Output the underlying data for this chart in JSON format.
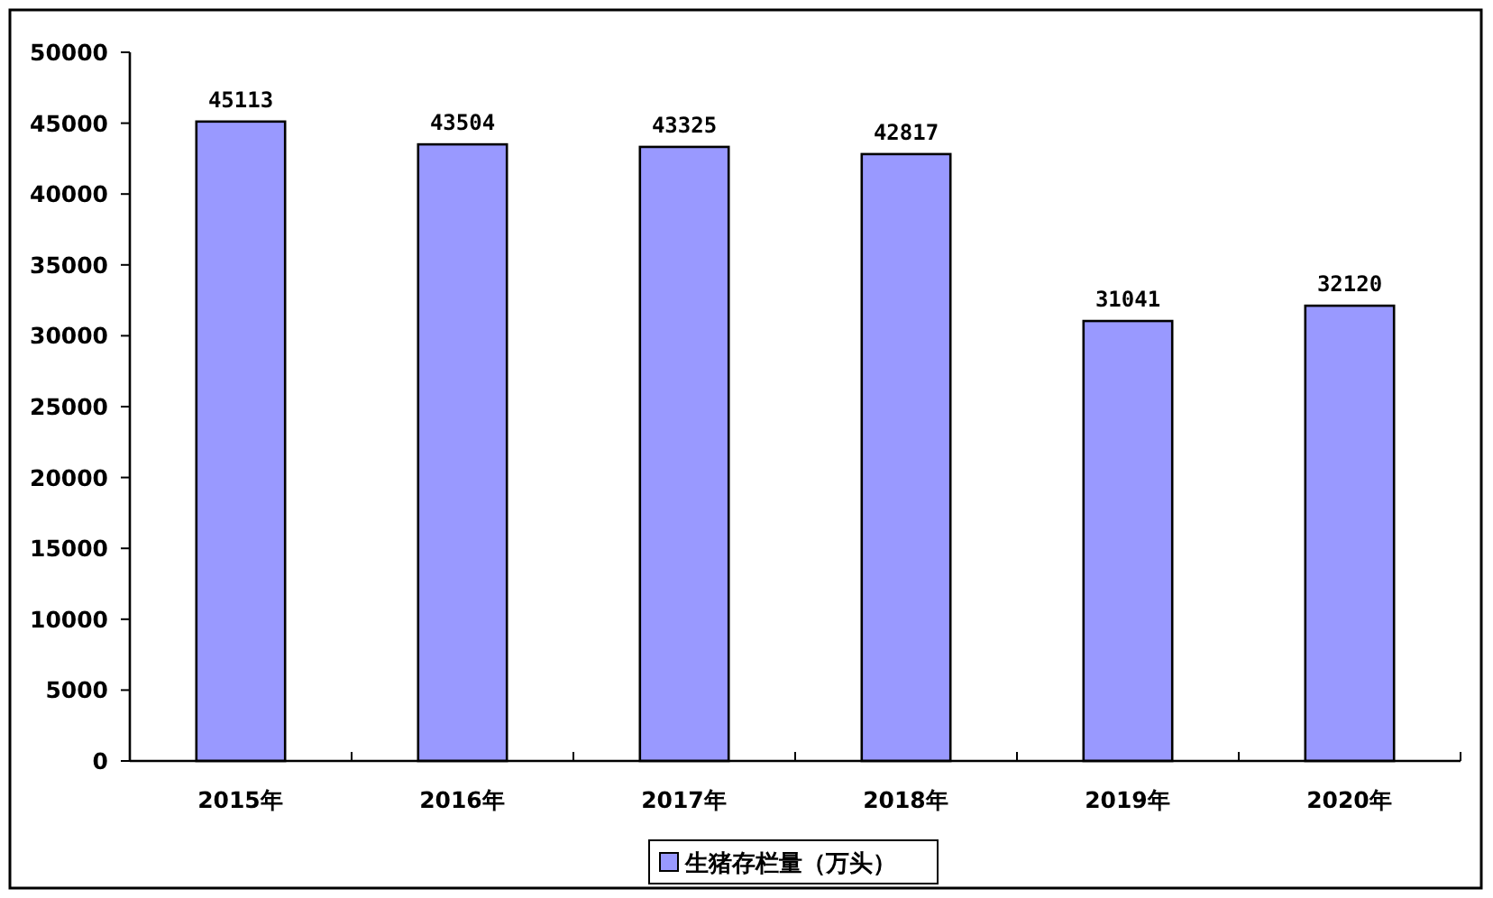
{
  "chart_data": {
    "type": "bar",
    "categories": [
      "2015年",
      "2016年",
      "2017年",
      "2018年",
      "2019年",
      "2020年"
    ],
    "series": [
      {
        "name": "生猪存栏量（万头）",
        "color": "#9999ff",
        "values": [
          45113,
          43504,
          43325,
          42817,
          31041,
          32120
        ]
      }
    ],
    "ylim": [
      0,
      50000
    ],
    "yticks": [
      0,
      5000,
      10000,
      15000,
      20000,
      25000,
      30000,
      35000,
      40000,
      45000,
      50000
    ],
    "data_labels": true,
    "legend": "bottom",
    "grid": false
  }
}
